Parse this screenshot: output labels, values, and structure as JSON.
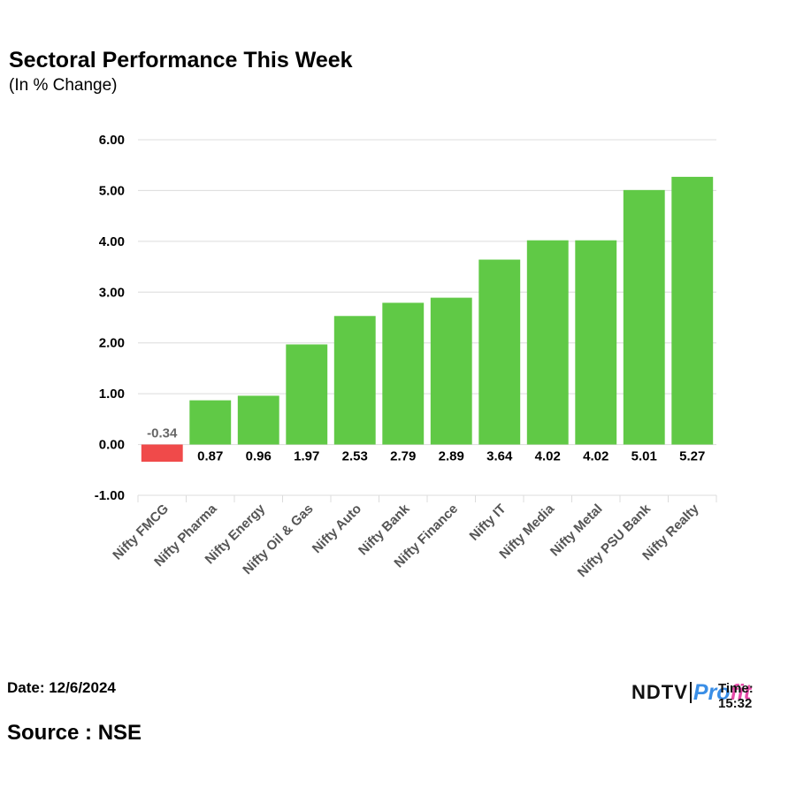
{
  "header": {
    "title": "Sectoral Performance This Week",
    "subtitle": "(In % Change)"
  },
  "footer": {
    "date": "Date: 12/6/2024",
    "source": "Source : NSE",
    "logo_left": "NDTV",
    "logo_right_a": "Pro",
    "logo_right_b": "fit",
    "time_overlay": "Time: 15:32"
  },
  "colors": {
    "positive": "#60C946",
    "negative": "#F04A4A",
    "grid": "#dcdcdc",
    "axis_text": "#000000",
    "negative_label": "#666666"
  },
  "chart_data": {
    "type": "bar",
    "title": "Sectoral Performance This Week",
    "subtitle": "(In % Change)",
    "xlabel": "",
    "ylabel": "",
    "ylim": [
      -1,
      6
    ],
    "yticks": [
      "-1.00",
      "0.00",
      "1.00",
      "2.00",
      "3.00",
      "4.00",
      "5.00",
      "6.00"
    ],
    "ytick_values": [
      -1,
      0,
      1,
      2,
      3,
      4,
      5,
      6
    ],
    "grid": true,
    "categories": [
      "Nifty FMCG",
      "Nifty Pharma",
      "Nifty Energy",
      "Nifty Oil & Gas",
      "Nifty Auto",
      "Nifty Bank",
      "Nifty Finance",
      "Nifty IT",
      "Nifty Media",
      "Nifty Metal",
      "Nifty PSU Bank",
      "Nifty Realty"
    ],
    "values": [
      -0.34,
      0.87,
      0.96,
      1.97,
      2.53,
      2.79,
      2.89,
      3.64,
      4.02,
      4.02,
      5.01,
      5.27
    ],
    "value_labels": [
      "-0.34",
      "0.87",
      "0.96",
      "1.97",
      "2.53",
      "2.79",
      "2.89",
      "3.64",
      "4.02",
      "4.02",
      "5.01",
      "5.27"
    ]
  }
}
